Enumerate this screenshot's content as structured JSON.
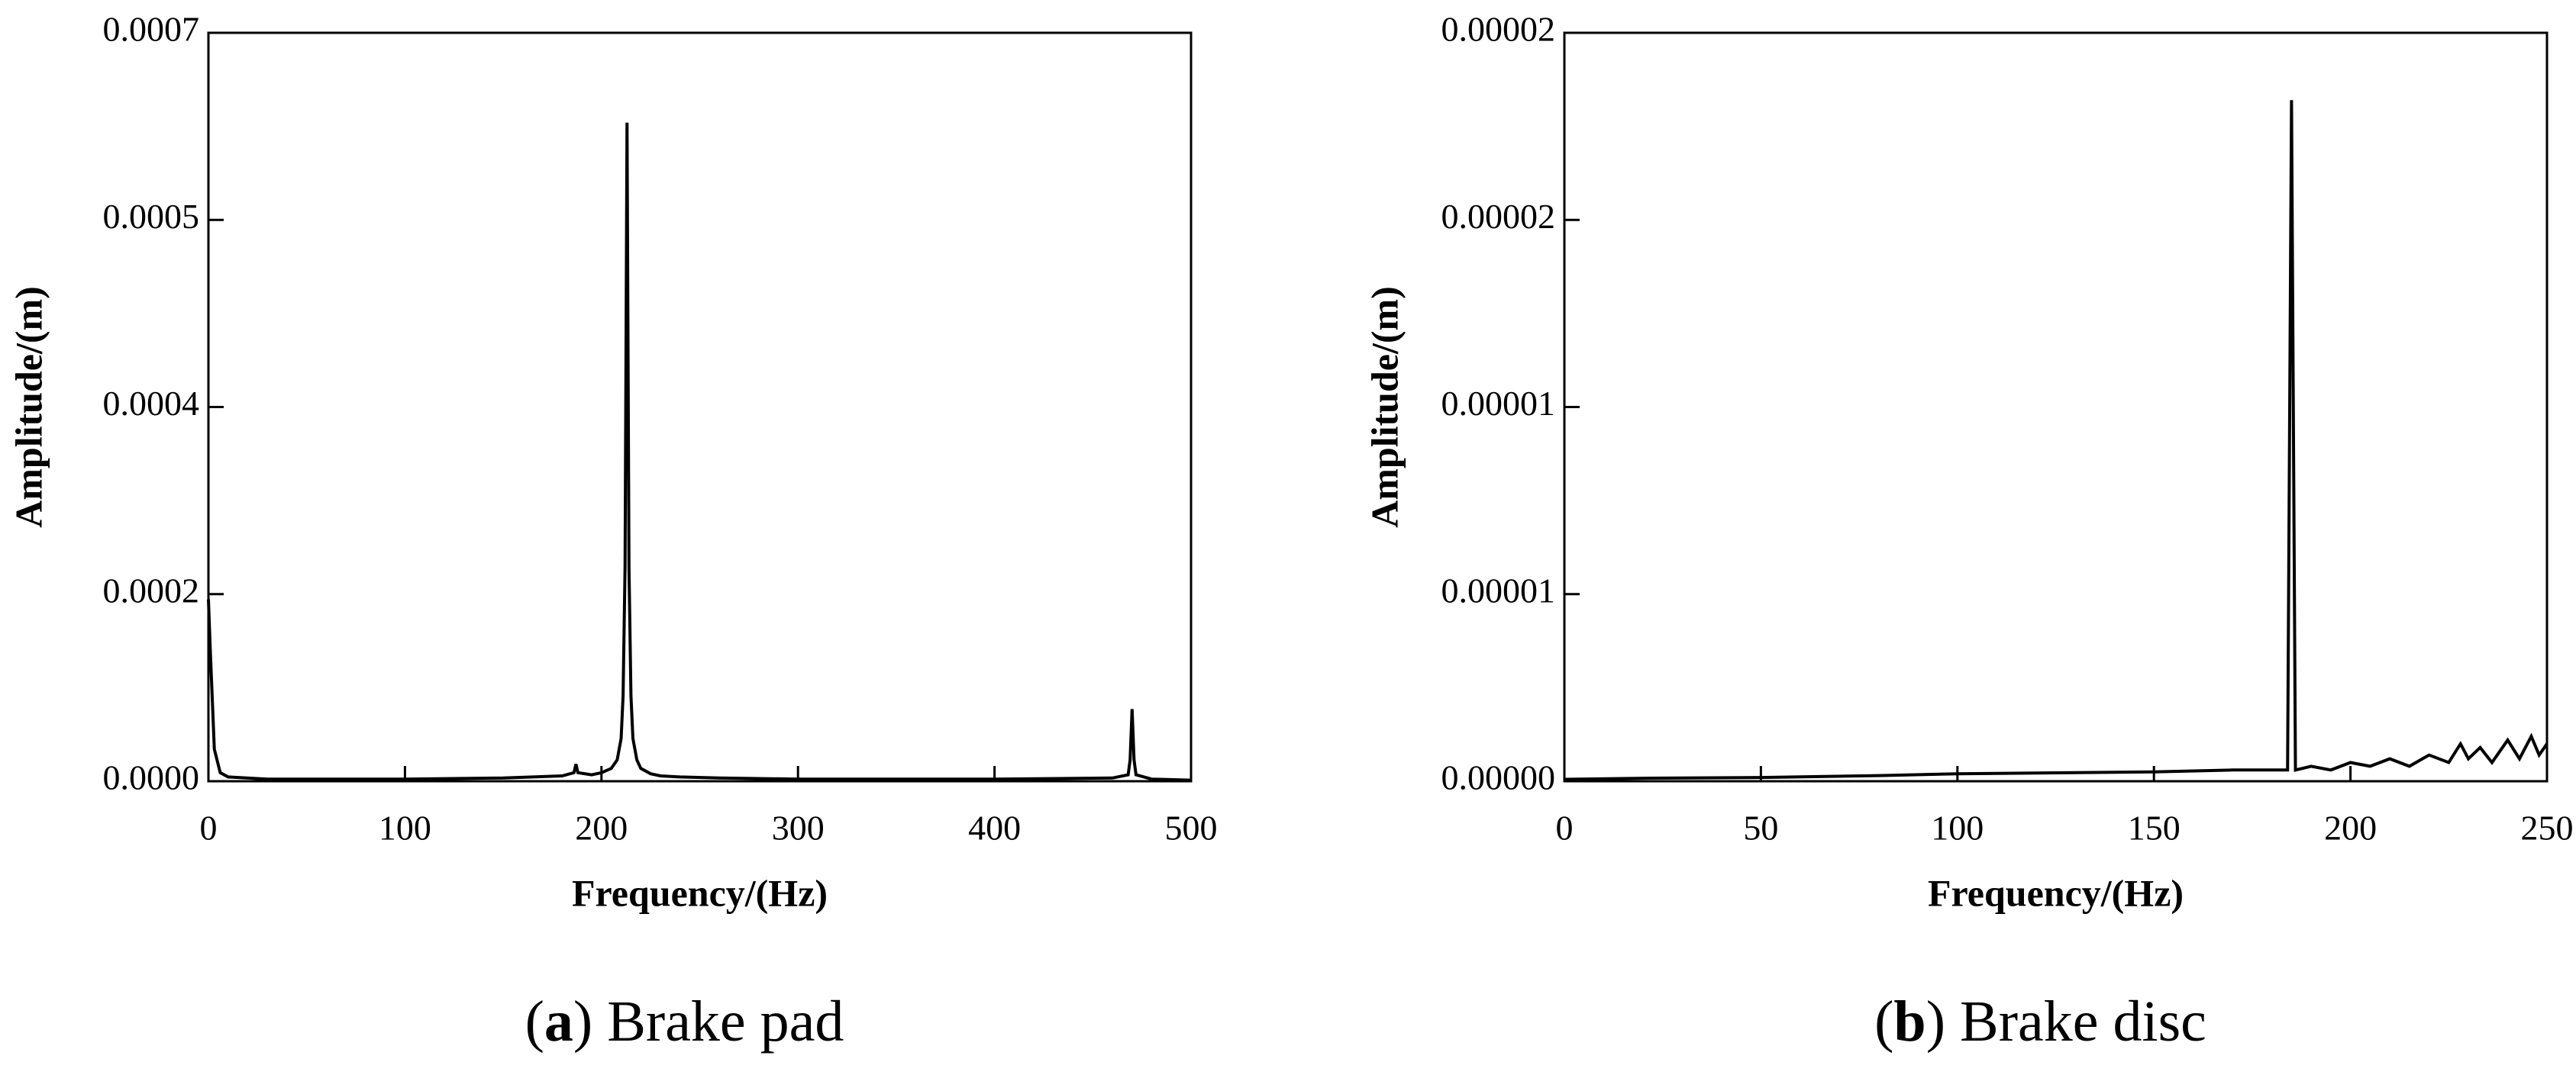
{
  "chart_data": [
    {
      "type": "line",
      "caption": [
        "(",
        "a",
        ") Brake pad"
      ],
      "xlabel": "Frequency/(Hz)",
      "ylabel": "Amplitude/(m)",
      "xlim": [
        0,
        500
      ],
      "xticks": [
        0,
        100,
        200,
        300,
        400,
        500
      ],
      "ylim": [
        0,
        0.0007
      ],
      "yticks": [
        {
          "value": 0,
          "label": "0.0000"
        },
        {
          "value": 0.000175,
          "label": "0.0002"
        },
        {
          "value": 0.00035,
          "label": "0.0004"
        },
        {
          "value": 0.000525,
          "label": "0.0005"
        },
        {
          "value": 0.0007,
          "label": "0.0007"
        }
      ],
      "series": [
        {
          "color": "#000000",
          "x": [
            0,
            1,
            3,
            6,
            10,
            30,
            60,
            100,
            150,
            180,
            186,
            187,
            188,
            195,
            200,
            205,
            208,
            210,
            211,
            212,
            213,
            214,
            215,
            216,
            218,
            220,
            225,
            230,
            240,
            260,
            300,
            350,
            400,
            460,
            468,
            469,
            470,
            471,
            472,
            480,
            500
          ],
          "values": [
            0.00017,
            0.00012,
            3e-05,
            8e-06,
            4e-06,
            2e-06,
            2e-06,
            2e-06,
            3e-06,
            5e-06,
            8e-06,
            1.6e-05,
            8e-06,
            6e-06,
            8e-06,
            1.2e-05,
            2e-05,
            4e-05,
            8e-05,
            0.0002,
            0.000616,
            0.0002,
            8e-05,
            4e-05,
            2e-05,
            1.2e-05,
            7e-06,
            5e-06,
            4e-06,
            3e-06,
            2e-06,
            2e-06,
            2e-06,
            3e-06,
            6e-06,
            2e-05,
            6.75e-05,
            2e-05,
            6e-06,
            2e-06,
            1e-06
          ]
        }
      ]
    },
    {
      "type": "line",
      "caption": [
        "(",
        "b",
        ") Brake disc"
      ],
      "xlabel": "Frequency/(Hz)",
      "ylabel": "Amplitude/(m)",
      "xlim": [
        0,
        250
      ],
      "xticks": [
        0,
        50,
        100,
        150,
        200,
        250
      ],
      "ylim": [
        0,
        2e-05
      ],
      "yticks": [
        {
          "value": 0,
          "label": "0.00000"
        },
        {
          "value": 5e-06,
          "label": "0.00001"
        },
        {
          "value": 1e-05,
          "label": "0.00001"
        },
        {
          "value": 1.5e-05,
          "label": "0.00002"
        },
        {
          "value": 2e-05,
          "label": "0.00002"
        }
      ],
      "series": [
        {
          "color": "#000000",
          "x": [
            0,
            20,
            50,
            80,
            100,
            120,
            150,
            170,
            184,
            185,
            186,
            190,
            195,
            200,
            205,
            210,
            215,
            220,
            225,
            228,
            230,
            233,
            236,
            240,
            243,
            246,
            248,
            250
          ],
          "values": [
            5e-08,
            8e-08,
            1e-07,
            1.5e-07,
            2e-07,
            2.2e-07,
            2.5e-07,
            3e-07,
            3e-07,
            1.82e-05,
            3e-07,
            4e-07,
            3e-07,
            5e-07,
            4e-07,
            6e-07,
            4e-07,
            7e-07,
            5e-07,
            1e-06,
            6e-07,
            9e-07,
            5e-07,
            1.1e-06,
            6e-07,
            1.2e-06,
            7e-07,
            1e-06
          ]
        }
      ]
    }
  ]
}
